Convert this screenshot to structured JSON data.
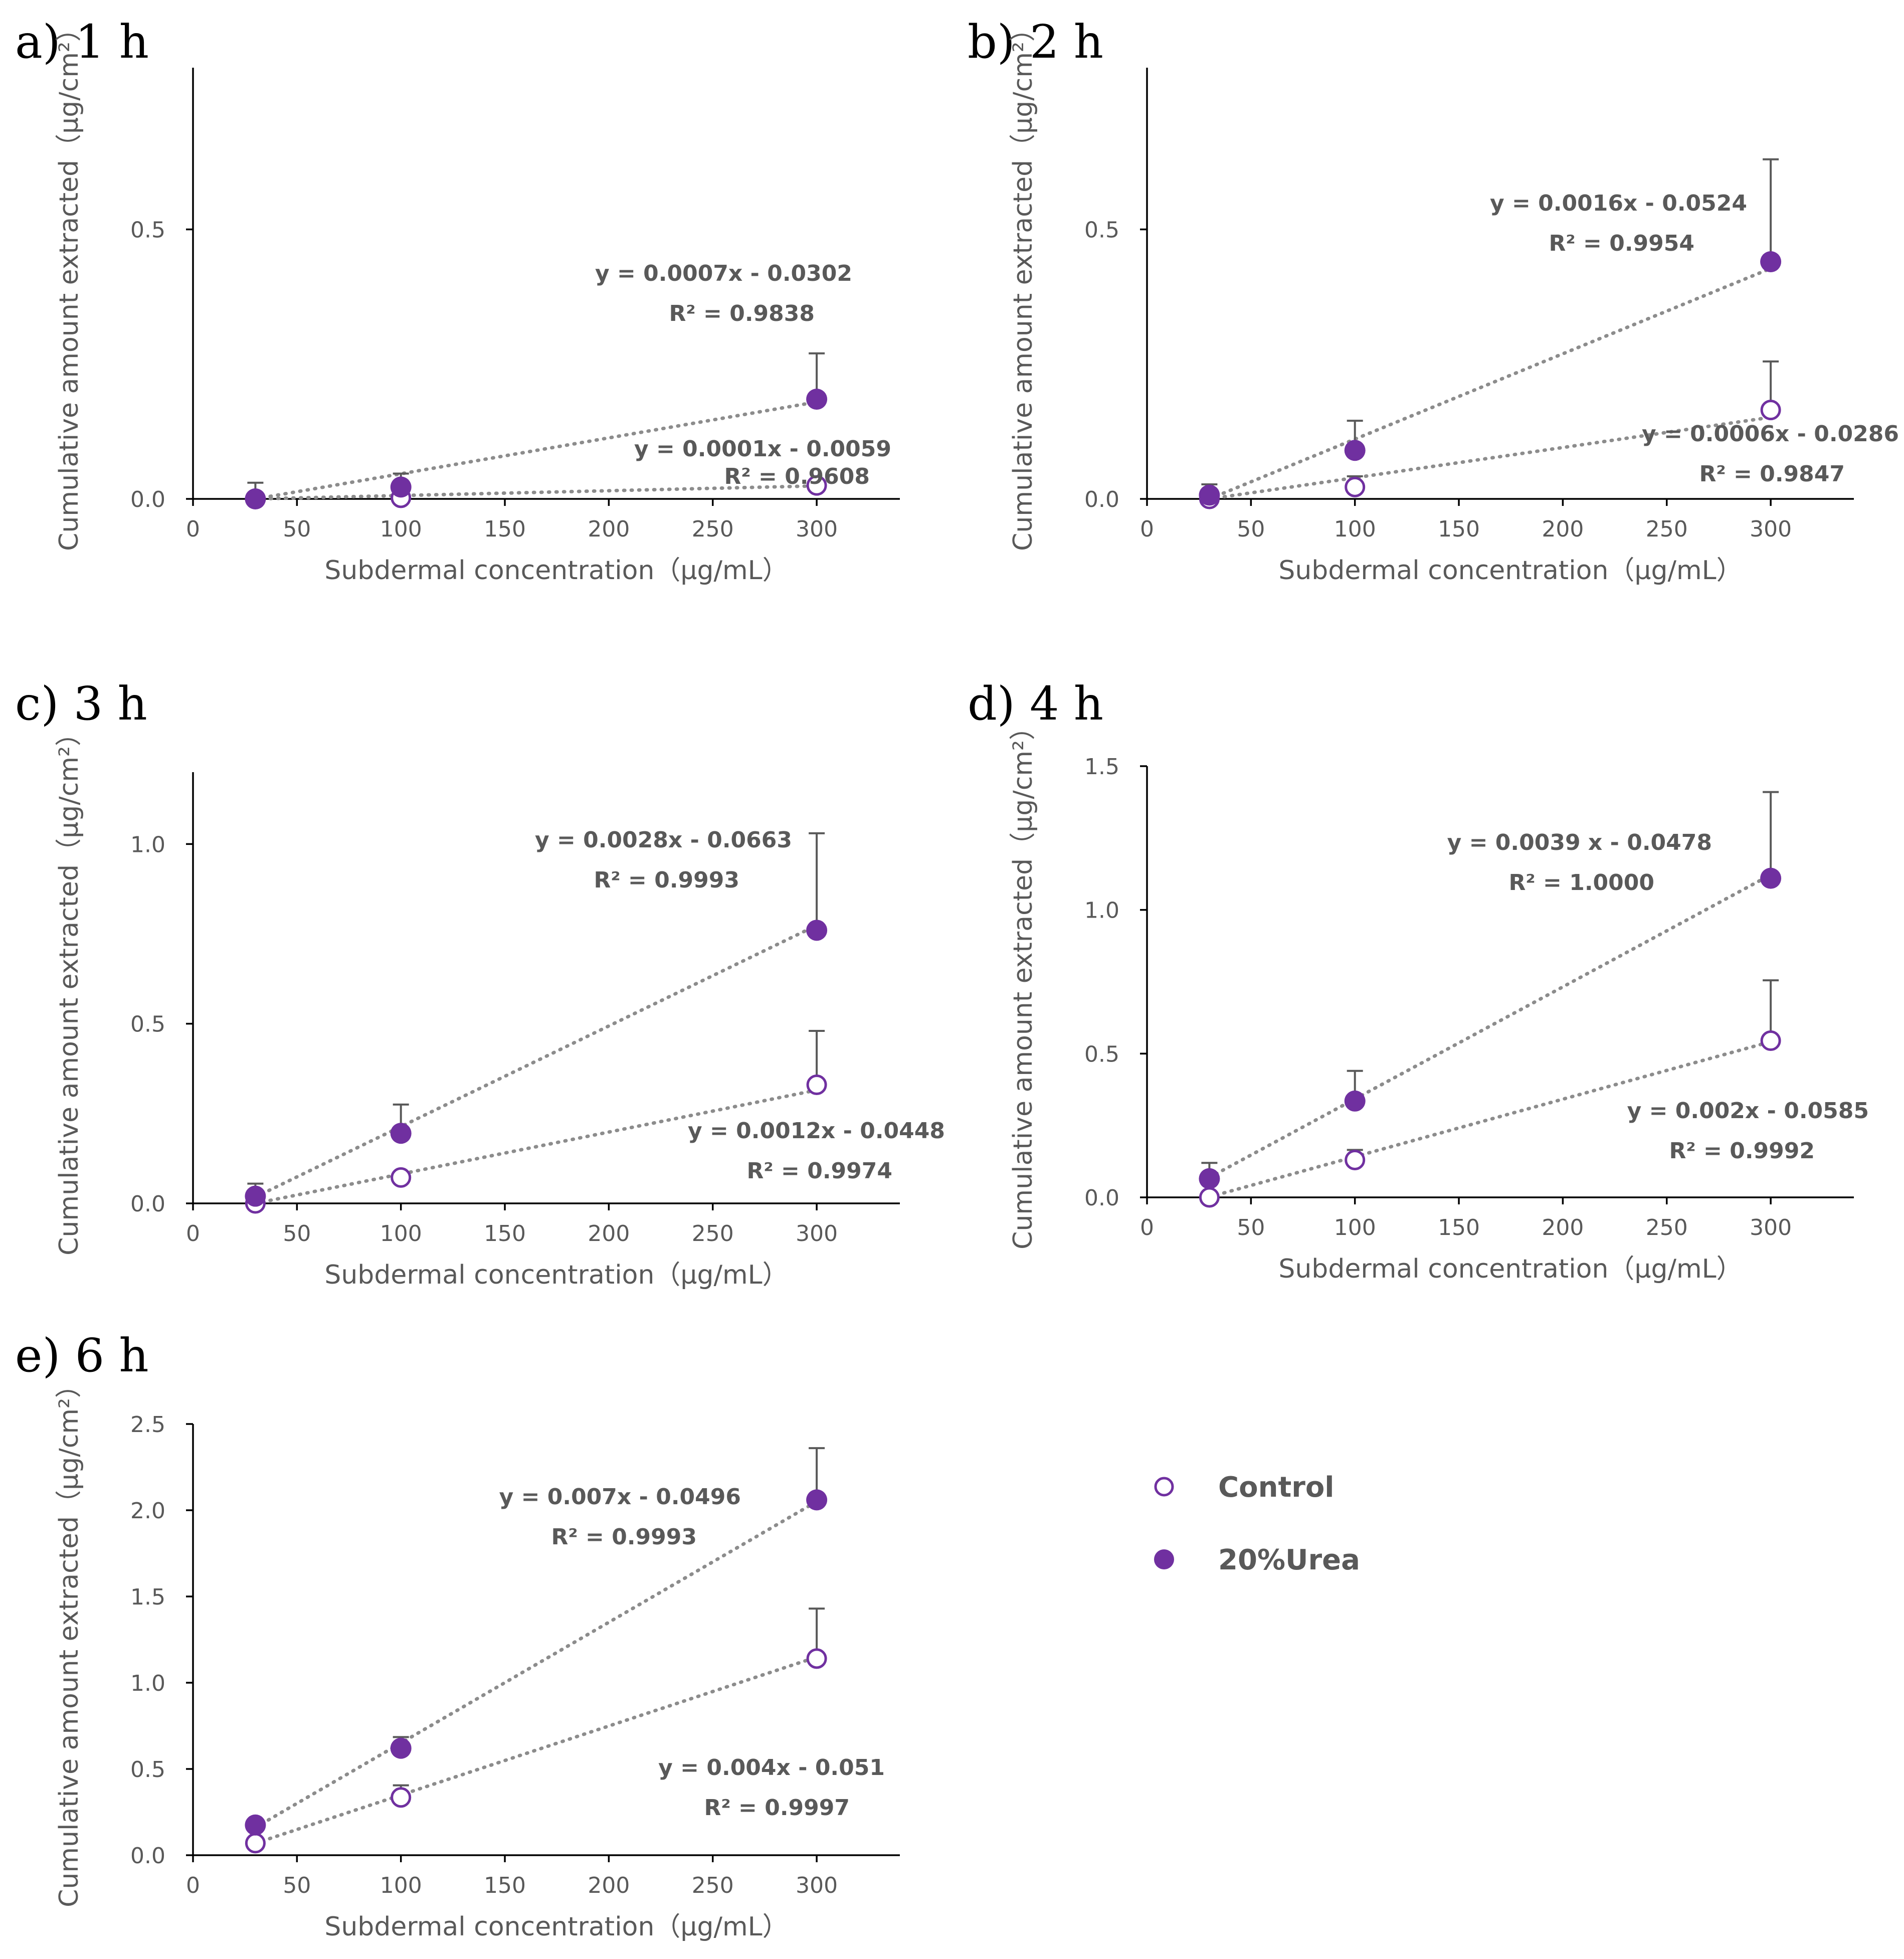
{
  "colors": {
    "marker": "#7030a0",
    "trend": "#8c8c8c",
    "axis": "#000000",
    "text": "#595959"
  },
  "legend": {
    "items": [
      {
        "name": "Control",
        "marker": "open-circle"
      },
      {
        "name": "20%Urea",
        "marker": "filled-circle"
      }
    ]
  },
  "chart_data": [
    {
      "type": "scatter",
      "panel_label": "a) 1 h",
      "xlabel": "Subdermal concentration（μg/mL）",
      "ylabel": "Cumulative amount extracted（μg/cm²）",
      "xlim": [
        0,
        340
      ],
      "ylim": [
        0,
        0.8
      ],
      "xticks": [
        0,
        50,
        100,
        150,
        200,
        250,
        300
      ],
      "yticks": [
        0.0,
        0.5
      ],
      "ytick_decimals": 1,
      "series": [
        {
          "name": "Control",
          "x": [
            30,
            100,
            300
          ],
          "y": [
            0.0,
            0.002,
            0.025
          ],
          "yerr": [
            0.0,
            0.0,
            0.0
          ],
          "trendline": {
            "equation": "y = 0.0001x - 0.0059",
            "r2": "R² = 0.9608",
            "slope": 0.0001,
            "intercept": -0.0059
          }
        },
        {
          "name": "20%Urea",
          "x": [
            30,
            100,
            300
          ],
          "y": [
            -0.003,
            0.022,
            0.185
          ],
          "yerr": [
            0.03,
            0.025,
            0.085
          ],
          "trendline": {
            "equation": "y = 0.0007x - 0.0302",
            "r2": "R² = 0.9838",
            "slope": 0.0007,
            "intercept": -0.0302
          }
        }
      ]
    },
    {
      "type": "scatter",
      "panel_label": "b) 2 h",
      "xlabel": "Subdermal concentration（μg/mL）",
      "ylabel": "Cumulative amount extracted（μg/cm²）",
      "xlim": [
        0,
        340
      ],
      "ylim": [
        0,
        0.8
      ],
      "xticks": [
        0,
        50,
        100,
        150,
        200,
        250,
        300
      ],
      "yticks": [
        0.0,
        0.5
      ],
      "ytick_decimals": 1,
      "series": [
        {
          "name": "Control",
          "x": [
            30,
            100,
            300
          ],
          "y": [
            -0.003,
            0.022,
            0.165
          ],
          "yerr": [
            0.0,
            0.02,
            0.09
          ],
          "trendline": {
            "equation": "y = 0.0006x - 0.0286",
            "r2": "R² = 0.9847",
            "slope": 0.0006,
            "intercept": -0.0286
          }
        },
        {
          "name": "20%Urea",
          "x": [
            30,
            100,
            300
          ],
          "y": [
            0.007,
            0.09,
            0.44
          ],
          "yerr": [
            0.02,
            0.055,
            0.19
          ],
          "trendline": {
            "equation": "y = 0.0016x - 0.0524",
            "r2": "R² = 0.9954",
            "slope": 0.0016,
            "intercept": -0.0524
          }
        }
      ]
    },
    {
      "type": "scatter",
      "panel_label": "c) 3 h",
      "xlabel": "Subdermal concentration（μg/mL）",
      "ylabel": "Cumulative amount extracted（μg/cm²）",
      "xlim": [
        0,
        340
      ],
      "ylim": [
        0,
        1.2
      ],
      "xticks": [
        0,
        50,
        100,
        150,
        200,
        250,
        300
      ],
      "yticks": [
        0.0,
        0.5,
        1.0
      ],
      "ytick_decimals": 1,
      "series": [
        {
          "name": "Control",
          "x": [
            30,
            100,
            300
          ],
          "y": [
            0.0,
            0.072,
            0.33
          ],
          "yerr": [
            0.0,
            0.01,
            0.15
          ],
          "trendline": {
            "equation": "y = 0.0012x - 0.0448",
            "r2": "R² = 0.9974",
            "slope": 0.0012,
            "intercept": -0.0448
          }
        },
        {
          "name": "20%Urea",
          "x": [
            30,
            100,
            300
          ],
          "y": [
            0.02,
            0.195,
            0.76
          ],
          "yerr": [
            0.035,
            0.08,
            0.27
          ],
          "trendline": {
            "equation": "y = 0.0028x - 0.0663",
            "r2": "R² = 0.9993",
            "slope": 0.0028,
            "intercept": -0.0663
          }
        }
      ]
    },
    {
      "type": "scatter",
      "panel_label": "d) 4 h",
      "xlabel": "Subdermal concentration（μg/mL）",
      "ylabel": "Cumulative amount extracted（μg/cm²）",
      "xlim": [
        0,
        340
      ],
      "ylim": [
        0,
        1.5
      ],
      "xticks": [
        0,
        50,
        100,
        150,
        200,
        250,
        300
      ],
      "yticks": [
        0.0,
        0.5,
        1.0,
        1.5
      ],
      "ytick_decimals": 1,
      "series": [
        {
          "name": "Control",
          "x": [
            30,
            100,
            300
          ],
          "y": [
            0.0,
            0.13,
            0.545
          ],
          "yerr": [
            0.0,
            0.035,
            0.21
          ],
          "trendline": {
            "equation": "y = 0.002x - 0.0585",
            "r2": "R² = 0.9992",
            "slope": 0.002,
            "intercept": -0.0585
          }
        },
        {
          "name": "20%Urea",
          "x": [
            30,
            100,
            300
          ],
          "y": [
            0.065,
            0.335,
            1.11
          ],
          "yerr": [
            0.055,
            0.105,
            0.3
          ],
          "trendline": {
            "equation": "y = 0.0039 x - 0.0478",
            "r2": "R² = 1.0000",
            "slope": 0.0039,
            "intercept": -0.0478
          }
        }
      ]
    },
    {
      "type": "scatter",
      "panel_label": "e) 6 h",
      "xlabel": "Subdermal concentration（μg/mL）",
      "ylabel": "Cumulative amount extracted（μg/cm²）",
      "xlim": [
        0,
        340
      ],
      "ylim": [
        0,
        2.5
      ],
      "xticks": [
        0,
        50,
        100,
        150,
        200,
        250,
        300
      ],
      "yticks": [
        0.0,
        0.5,
        1.0,
        1.5,
        2.0,
        2.5
      ],
      "ytick_decimals": 1,
      "series": [
        {
          "name": "Control",
          "x": [
            30,
            100,
            300
          ],
          "y": [
            0.07,
            0.335,
            1.14
          ],
          "yerr": [
            0.0,
            0.07,
            0.29
          ],
          "trendline": {
            "equation": "y = 0.004x - 0.051",
            "r2": "R² = 0.9997",
            "slope": 0.004,
            "intercept": -0.051
          }
        },
        {
          "name": "20%Urea",
          "x": [
            30,
            100,
            300
          ],
          "y": [
            0.175,
            0.62,
            2.06
          ],
          "yerr": [
            0.0,
            0.065,
            0.3
          ],
          "trendline": {
            "equation": "y = 0.007x - 0.0496",
            "r2": "R² = 0.9993",
            "slope": 0.007,
            "intercept": -0.0496
          }
        }
      ]
    }
  ]
}
